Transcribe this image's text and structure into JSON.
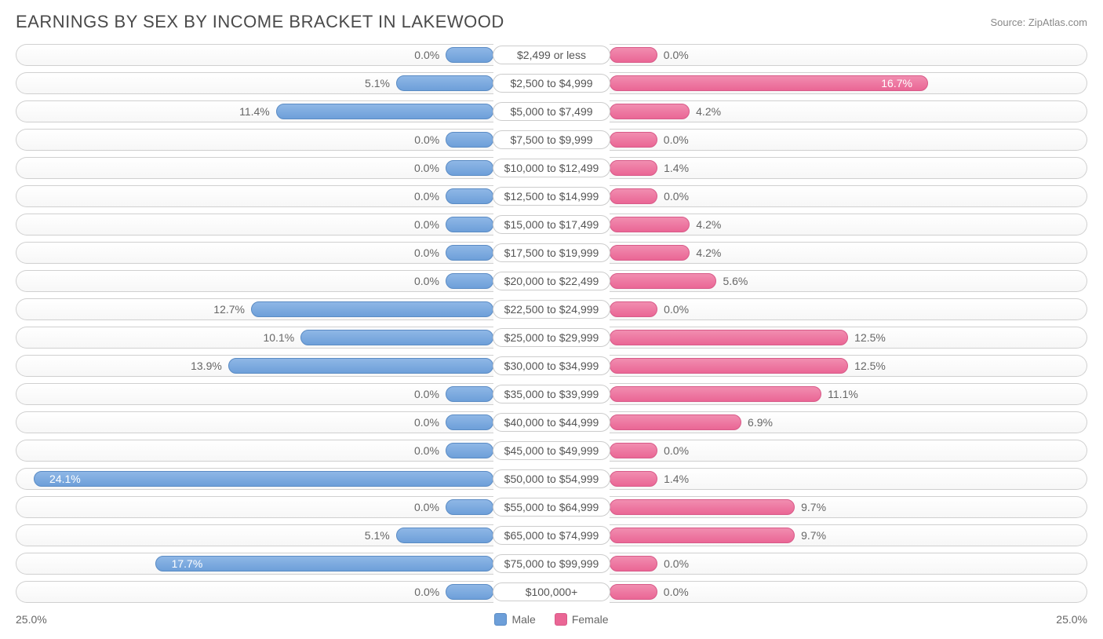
{
  "title": "EARNINGS BY SEX BY INCOME BRACKET IN LAKEWOOD",
  "source": "Source: ZipAtlas.com",
  "chart": {
    "type": "diverging-bar",
    "max_pct": 25.0,
    "min_bar_pct": 2.5,
    "axis_left_label": "25.0%",
    "axis_right_label": "25.0%",
    "male_color": "#6d9fd9",
    "female_color": "#ea6695",
    "track_border": "#d0d0d0",
    "track_bg_top": "#ffffff",
    "track_bg_bottom": "#f7f7f7",
    "categories": [
      {
        "label": "$2,499 or less",
        "male": 0.0,
        "female": 0.0
      },
      {
        "label": "$2,500 to $4,999",
        "male": 5.1,
        "female": 16.7
      },
      {
        "label": "$5,000 to $7,499",
        "male": 11.4,
        "female": 4.2
      },
      {
        "label": "$7,500 to $9,999",
        "male": 0.0,
        "female": 0.0
      },
      {
        "label": "$10,000 to $12,499",
        "male": 0.0,
        "female": 1.4
      },
      {
        "label": "$12,500 to $14,999",
        "male": 0.0,
        "female": 0.0
      },
      {
        "label": "$15,000 to $17,499",
        "male": 0.0,
        "female": 4.2
      },
      {
        "label": "$17,500 to $19,999",
        "male": 0.0,
        "female": 4.2
      },
      {
        "label": "$20,000 to $22,499",
        "male": 0.0,
        "female": 5.6
      },
      {
        "label": "$22,500 to $24,999",
        "male": 12.7,
        "female": 0.0
      },
      {
        "label": "$25,000 to $29,999",
        "male": 10.1,
        "female": 12.5
      },
      {
        "label": "$30,000 to $34,999",
        "male": 13.9,
        "female": 12.5
      },
      {
        "label": "$35,000 to $39,999",
        "male": 0.0,
        "female": 11.1
      },
      {
        "label": "$40,000 to $44,999",
        "male": 0.0,
        "female": 6.9
      },
      {
        "label": "$45,000 to $49,999",
        "male": 0.0,
        "female": 0.0
      },
      {
        "label": "$50,000 to $54,999",
        "male": 24.1,
        "female": 1.4
      },
      {
        "label": "$55,000 to $64,999",
        "male": 0.0,
        "female": 9.7
      },
      {
        "label": "$65,000 to $74,999",
        "male": 5.1,
        "female": 9.7
      },
      {
        "label": "$75,000 to $99,999",
        "male": 17.7,
        "female": 0.0
      },
      {
        "label": "$100,000+",
        "male": 0.0,
        "female": 0.0
      }
    ],
    "legend": {
      "male_label": "Male",
      "female_label": "Female"
    }
  }
}
